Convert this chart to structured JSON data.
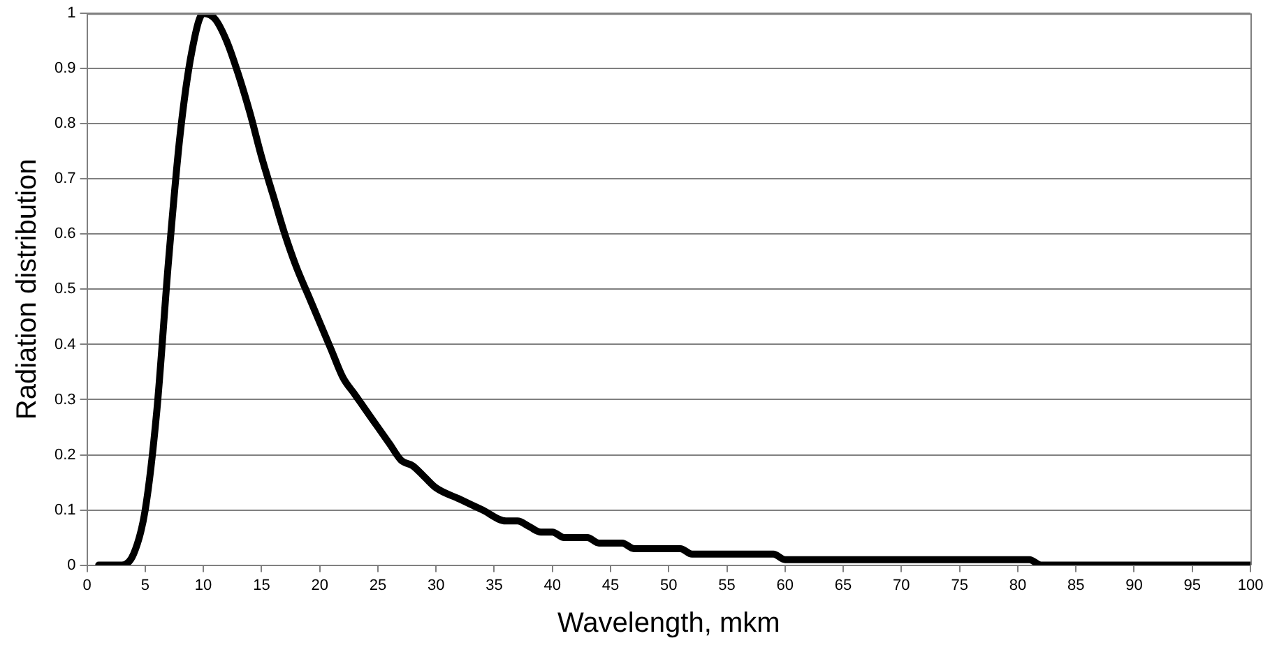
{
  "chart_data": {
    "type": "line",
    "xlabel": "Wavelength, mkm",
    "ylabel": "Radiation distribution",
    "x": [
      1,
      2,
      3,
      4,
      5,
      6,
      7,
      8,
      9,
      10,
      11,
      12,
      13,
      14,
      15,
      16,
      17,
      18,
      19,
      20,
      21,
      22,
      23,
      24,
      25,
      26,
      27,
      28,
      29,
      30,
      32,
      34,
      36,
      37,
      38,
      39,
      40,
      41,
      43,
      44,
      46,
      47,
      51,
      52,
      59,
      60,
      81,
      82,
      100
    ],
    "series": [
      {
        "color": "#000000",
        "values": [
          0,
          0,
          0,
          0.02,
          0.1,
          0.28,
          0.55,
          0.78,
          0.93,
          1,
          0.99,
          0.95,
          0.89,
          0.82,
          0.74,
          0.67,
          0.6,
          0.54,
          0.49,
          0.44,
          0.39,
          0.34,
          0.31,
          0.28,
          0.25,
          0.22,
          0.19,
          0.18,
          0.16,
          0.14,
          0.12,
          0.1,
          0.08,
          0.08,
          0.07,
          0.06,
          0.06,
          0.05,
          0.05,
          0.04,
          0.04,
          0.03,
          0.03,
          0.02,
          0.02,
          0.01,
          0.01,
          0,
          0
        ]
      }
    ],
    "xlim": [
      0,
      100
    ],
    "ylim": [
      0,
      1
    ],
    "xticks": [
      0,
      5,
      10,
      15,
      20,
      25,
      30,
      35,
      40,
      45,
      50,
      55,
      60,
      65,
      70,
      75,
      80,
      85,
      90,
      95,
      100
    ],
    "yticks": [
      0,
      0.1,
      0.2,
      0.3,
      0.4,
      0.5,
      0.6,
      0.7,
      0.8,
      0.9,
      1
    ],
    "grid": "y",
    "legend": false,
    "marker": "none",
    "line_style": "solid"
  }
}
